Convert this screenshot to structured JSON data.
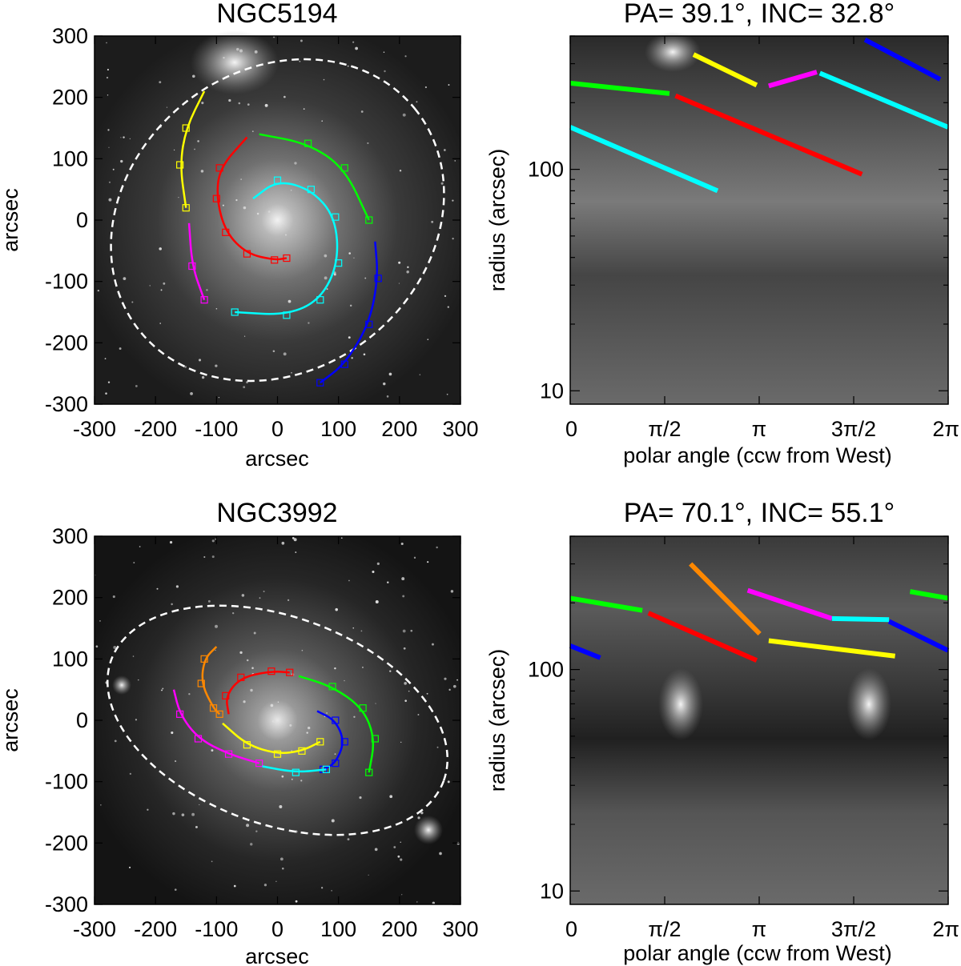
{
  "panels": [
    {
      "id": "ngc5194-image",
      "title": "NGC5194",
      "xlabel": "arcsec",
      "ylabel": "arcsec",
      "xticks": [
        "-300",
        "-200",
        "-100",
        "0",
        "100",
        "200",
        "300"
      ],
      "yticks": [
        "300",
        "200",
        "100",
        "0",
        "-100",
        "-200",
        "-300"
      ],
      "xlim": [
        -300,
        300
      ],
      "ylim": [
        -300,
        300
      ],
      "ellipse": {
        "cx": 0,
        "cy": 0,
        "a": 290,
        "b": 245,
        "angle_deg": 39.1,
        "color": "#ffffff"
      },
      "arms": [
        {
          "color": "#ffff00",
          "points": [
            [
              -120,
              210
            ],
            [
              -150,
              150
            ],
            [
              -160,
              90
            ],
            [
              -150,
              20
            ]
          ]
        },
        {
          "color": "#ff0000",
          "points": [
            [
              -50,
              135
            ],
            [
              -95,
              85
            ],
            [
              -100,
              35
            ],
            [
              -85,
              -20
            ],
            [
              -50,
              -55
            ],
            [
              -5,
              -65
            ],
            [
              15,
              -62
            ]
          ]
        },
        {
          "color": "#ff00ff",
          "points": [
            [
              -145,
              -5
            ],
            [
              -140,
              -75
            ],
            [
              -120,
              -130
            ]
          ]
        },
        {
          "color": "#00ff00",
          "points": [
            [
              -30,
              140
            ],
            [
              50,
              125
            ],
            [
              110,
              85
            ],
            [
              150,
              0
            ]
          ]
        },
        {
          "color": "#00ffff",
          "points": [
            [
              -40,
              35
            ],
            [
              0,
              65
            ],
            [
              55,
              50
            ],
            [
              95,
              5
            ],
            [
              100,
              -70
            ],
            [
              70,
              -130
            ],
            [
              15,
              -155
            ],
            [
              -70,
              -150
            ]
          ]
        },
        {
          "color": "#0000ff",
          "points": [
            [
              160,
              -35
            ],
            [
              165,
              -95
            ],
            [
              150,
              -170
            ],
            [
              110,
              -235
            ],
            [
              70,
              -265
            ]
          ]
        }
      ]
    },
    {
      "id": "ngc5194-polar",
      "title": "PA=   39.1°, INC=   32.8°",
      "xlabel": "polar angle (ccw from West)",
      "ylabel": "radius (arcsec)",
      "xticks": [
        "0",
        "π/2",
        "π",
        "3π/2",
        "2π"
      ],
      "yticks": [
        "100",
        "10"
      ],
      "xlim": [
        0,
        6.2832
      ],
      "ylim_log": [
        8.7,
        400
      ],
      "segments": [
        {
          "color": "#00ff00",
          "x": [
            0.0,
            1.65
          ],
          "y": [
            245,
            220
          ]
        },
        {
          "color": "#ff0000",
          "x": [
            1.75,
            4.85
          ],
          "y": [
            215,
            95
          ]
        },
        {
          "color": "#ffff00",
          "x": [
            2.05,
            3.1
          ],
          "y": [
            330,
            240
          ]
        },
        {
          "color": "#ff00ff",
          "x": [
            3.3,
            4.1
          ],
          "y": [
            238,
            275
          ]
        },
        {
          "color": "#00ffff",
          "x": [
            4.15,
            6.28
          ],
          "y": [
            272,
            155
          ]
        },
        {
          "color": "#0000ff",
          "x": [
            4.9,
            6.15
          ],
          "y": [
            385,
            255
          ]
        },
        {
          "color": "#00ffff",
          "x": [
            0.0,
            2.45
          ],
          "y": [
            155,
            80
          ]
        }
      ]
    },
    {
      "id": "ngc3992-image",
      "title": "NGC3992",
      "xlabel": "arcsec",
      "ylabel": "arcsec",
      "xticks": [
        "-300",
        "-200",
        "-100",
        "0",
        "100",
        "200",
        "300"
      ],
      "yticks": [
        "300",
        "200",
        "100",
        "0",
        "-100",
        "-200",
        "-300"
      ],
      "xlim": [
        -300,
        300
      ],
      "ylim": [
        -300,
        300
      ],
      "ellipse": {
        "cx": 0,
        "cy": 0,
        "a": 290,
        "b": 170,
        "angle_deg": -20,
        "color": "#ffffff"
      },
      "arms": [
        {
          "color": "#ff8800",
          "points": [
            [
              -100,
              120
            ],
            [
              -120,
              100
            ],
            [
              -125,
              60
            ],
            [
              -105,
              20
            ],
            [
              -95,
              10
            ]
          ]
        },
        {
          "color": "#ff0000",
          "points": [
            [
              -80,
              10
            ],
            [
              -85,
              40
            ],
            [
              -60,
              70
            ],
            [
              -10,
              80
            ],
            [
              20,
              78
            ]
          ]
        },
        {
          "color": "#ff00ff",
          "points": [
            [
              -170,
              50
            ],
            [
              -160,
              10
            ],
            [
              -130,
              -30
            ],
            [
              -80,
              -55
            ],
            [
              -30,
              -70
            ]
          ]
        },
        {
          "color": "#00ff00",
          "points": [
            [
              35,
              72
            ],
            [
              90,
              55
            ],
            [
              140,
              20
            ],
            [
              160,
              -30
            ],
            [
              150,
              -85
            ]
          ]
        },
        {
          "color": "#ffff00",
          "points": [
            [
              -90,
              -5
            ],
            [
              -50,
              -40
            ],
            [
              0,
              -55
            ],
            [
              40,
              -50
            ],
            [
              70,
              -35
            ]
          ]
        },
        {
          "color": "#0000ff",
          "points": [
            [
              65,
              15
            ],
            [
              95,
              0
            ],
            [
              110,
              -35
            ],
            [
              95,
              -70
            ],
            [
              75,
              -80
            ]
          ]
        },
        {
          "color": "#00ffff",
          "points": [
            [
              -25,
              -75
            ],
            [
              30,
              -85
            ],
            [
              80,
              -80
            ]
          ]
        }
      ]
    },
    {
      "id": "ngc3992-polar",
      "title": "PA=   70.1°, INC=   55.1°",
      "xlabel": "polar angle (ccw from West)",
      "ylabel": "radius (arcsec)",
      "xticks": [
        "0",
        "π/2",
        "π",
        "3π/2",
        "2π"
      ],
      "yticks": [
        "100",
        "10"
      ],
      "xlim": [
        0,
        6.2832
      ],
      "ylim_log": [
        8.7,
        400
      ],
      "segments": [
        {
          "color": "#00ff00",
          "x": [
            0.0,
            1.2
          ],
          "y": [
            210,
            185
          ]
        },
        {
          "color": "#ff0000",
          "x": [
            1.3,
            3.1
          ],
          "y": [
            180,
            110
          ]
        },
        {
          "color": "#ff8800",
          "x": [
            2.0,
            3.15
          ],
          "y": [
            300,
            145
          ]
        },
        {
          "color": "#ff00ff",
          "x": [
            2.95,
            4.35
          ],
          "y": [
            228,
            170
          ]
        },
        {
          "color": "#00ffff",
          "x": [
            4.35,
            5.3
          ],
          "y": [
            170,
            168
          ]
        },
        {
          "color": "#0000ff",
          "x": [
            5.3,
            6.28
          ],
          "y": [
            165,
            122
          ]
        },
        {
          "color": "#00ff00",
          "x": [
            5.65,
            6.28
          ],
          "y": [
            225,
            210
          ]
        },
        {
          "color": "#ffff00",
          "x": [
            3.3,
            5.4
          ],
          "y": [
            135,
            115
          ]
        },
        {
          "color": "#0000ff",
          "x": [
            0.0,
            0.5
          ],
          "y": [
            128,
            113
          ]
        }
      ]
    }
  ]
}
